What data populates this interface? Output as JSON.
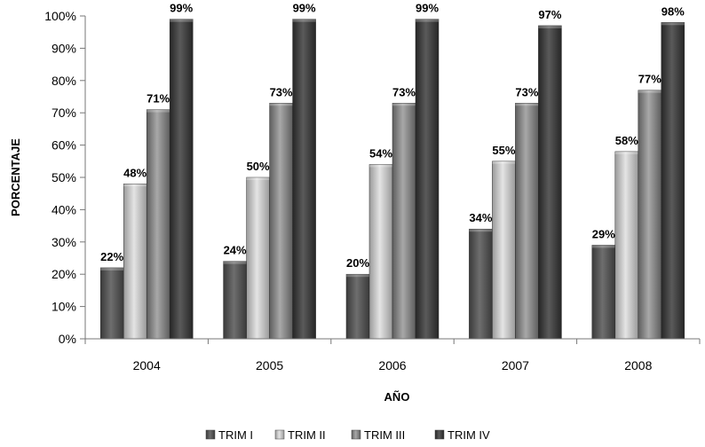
{
  "chart_data": {
    "type": "bar",
    "title": "",
    "xlabel": "AÑO",
    "ylabel": "PORCENTAJE",
    "categories": [
      "2004",
      "2005",
      "2006",
      "2007",
      "2008"
    ],
    "ylim": [
      0,
      100
    ],
    "yticks": [
      "0%",
      "10%",
      "20%",
      "30%",
      "40%",
      "50%",
      "60%",
      "70%",
      "80%",
      "90%",
      "100%"
    ],
    "ytick_values": [
      0,
      10,
      20,
      30,
      40,
      50,
      60,
      70,
      80,
      90,
      100
    ],
    "grid": false,
    "legend_position": "bottom",
    "series": [
      {
        "name": "TRIM I",
        "values": [
          22,
          24,
          20,
          34,
          29
        ],
        "labels": [
          "22%",
          "24%",
          "20%",
          "34%",
          "29%"
        ],
        "color": "#555555"
      },
      {
        "name": "TRIM II",
        "values": [
          48,
          50,
          54,
          55,
          58
        ],
        "labels": [
          "48%",
          "50%",
          "54%",
          "55%",
          "58%"
        ],
        "color": "#c4c4c4"
      },
      {
        "name": "TRIM III",
        "values": [
          71,
          73,
          73,
          73,
          77
        ],
        "labels": [
          "71%",
          "73%",
          "73%",
          "73%",
          "77%"
        ],
        "color": "#8a8a8a"
      },
      {
        "name": "TRIM IV",
        "values": [
          99,
          99,
          99,
          97,
          98
        ],
        "labels": [
          "99%",
          "99%",
          "99%",
          "97%",
          "98%"
        ],
        "color": "#404040"
      }
    ]
  }
}
